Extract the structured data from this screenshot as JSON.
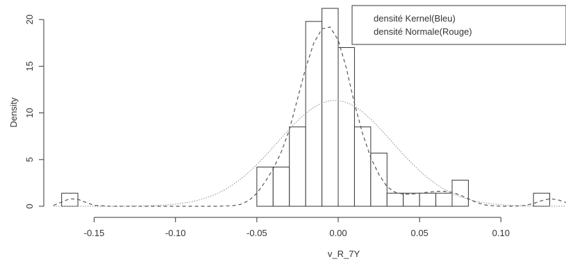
{
  "chart_data": {
    "type": "histogram",
    "title": "",
    "xlabel": "v_R_7Y",
    "ylabel": "Density",
    "xlim": [
      -0.175,
      0.14
    ],
    "ylim": [
      0,
      21.5
    ],
    "x_ticks": [
      -0.15,
      -0.1,
      -0.05,
      0.0,
      0.05,
      0.1
    ],
    "x_tick_labels": [
      "-0.15",
      "-0.10",
      "-0.05",
      "0.00",
      "0.05",
      "0.10"
    ],
    "y_ticks": [
      0,
      5,
      10,
      15,
      20
    ],
    "y_tick_labels": [
      "0",
      "5",
      "10",
      "15",
      "20"
    ],
    "grid": false,
    "legend_position": "top-right",
    "legend": [
      "densité Kernel(Bleu)",
      "densité Normale(Rouge)"
    ],
    "bins": [
      {
        "x0": -0.17,
        "x1": -0.16,
        "density": 1.4
      },
      {
        "x0": -0.05,
        "x1": -0.04,
        "density": 4.2
      },
      {
        "x0": -0.04,
        "x1": -0.03,
        "density": 4.2
      },
      {
        "x0": -0.03,
        "x1": -0.02,
        "density": 8.5
      },
      {
        "x0": -0.02,
        "x1": -0.01,
        "density": 19.8
      },
      {
        "x0": -0.01,
        "x1": 0.0,
        "density": 21.2
      },
      {
        "x0": 0.0,
        "x1": 0.01,
        "density": 17.0
      },
      {
        "x0": 0.01,
        "x1": 0.02,
        "density": 8.5
      },
      {
        "x0": 0.02,
        "x1": 0.03,
        "density": 5.7
      },
      {
        "x0": 0.03,
        "x1": 0.04,
        "density": 1.4
      },
      {
        "x0": 0.04,
        "x1": 0.05,
        "density": 1.4
      },
      {
        "x0": 0.05,
        "x1": 0.06,
        "density": 1.4
      },
      {
        "x0": 0.06,
        "x1": 0.07,
        "density": 1.4
      },
      {
        "x0": 0.07,
        "x1": 0.08,
        "density": 2.8
      },
      {
        "x0": 0.12,
        "x1": 0.13,
        "density": 1.4
      }
    ],
    "series": [
      {
        "style": "dashed",
        "x": [
          -0.175,
          -0.17,
          -0.165,
          -0.16,
          -0.155,
          -0.15,
          -0.14,
          -0.13,
          -0.11,
          -0.09,
          -0.075,
          -0.065,
          -0.06,
          -0.055,
          -0.05,
          -0.045,
          -0.04,
          -0.035,
          -0.03,
          -0.025,
          -0.02,
          -0.015,
          -0.01,
          -0.005,
          0.0,
          0.005,
          0.01,
          0.015,
          0.02,
          0.025,
          0.03,
          0.035,
          0.04,
          0.045,
          0.05,
          0.055,
          0.06,
          0.065,
          0.07,
          0.075,
          0.08,
          0.085,
          0.09,
          0.095,
          0.1,
          0.105,
          0.11,
          0.115,
          0.12,
          0.125,
          0.13,
          0.135,
          0.14
        ],
        "y": [
          0.1,
          0.45,
          0.8,
          0.75,
          0.4,
          0.1,
          0.0,
          0.0,
          0.0,
          0.0,
          0.0,
          0.05,
          0.2,
          0.6,
          1.4,
          2.6,
          4.0,
          5.8,
          8.2,
          11.5,
          14.8,
          17.5,
          19.0,
          19.2,
          17.8,
          14.8,
          11.0,
          7.8,
          5.2,
          3.4,
          2.1,
          1.5,
          1.3,
          1.3,
          1.4,
          1.5,
          1.6,
          1.6,
          1.5,
          1.2,
          0.8,
          0.4,
          0.15,
          0.05,
          0.0,
          0.0,
          0.02,
          0.1,
          0.3,
          0.6,
          0.8,
          0.7,
          0.4
        ]
      },
      {
        "style": "dotted",
        "mean": -0.002,
        "sd": 0.0352
      }
    ]
  }
}
